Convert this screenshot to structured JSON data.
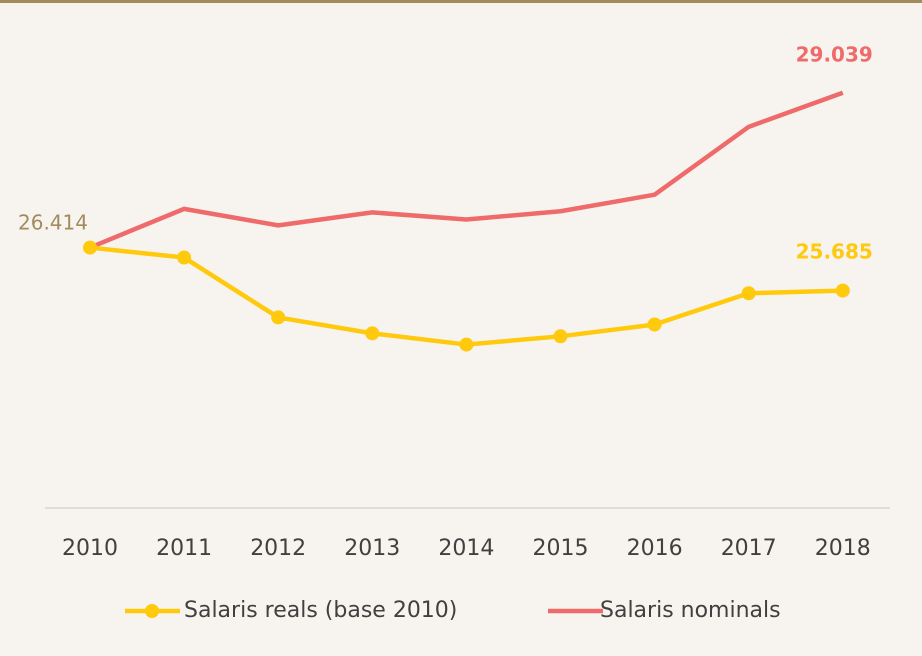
{
  "chart_data": {
    "type": "line",
    "categories": [
      "2010",
      "2011",
      "2012",
      "2013",
      "2014",
      "2015",
      "2016",
      "2017",
      "2018"
    ],
    "series": [
      {
        "name": "Salaris reals (base 2010)",
        "color": "#ffc90e",
        "values": [
          26.414,
          26.245,
          25.23,
          24.96,
          24.77,
          24.91,
          25.11,
          25.64,
          25.685
        ]
      },
      {
        "name": "Salaris nominals",
        "color": "#ef6b6b",
        "values": [
          26.414,
          27.07,
          26.79,
          27.01,
          26.89,
          27.03,
          27.31,
          28.46,
          29.039
        ]
      }
    ],
    "ylim": [
      22,
      30
    ],
    "grid": false
  }
}
